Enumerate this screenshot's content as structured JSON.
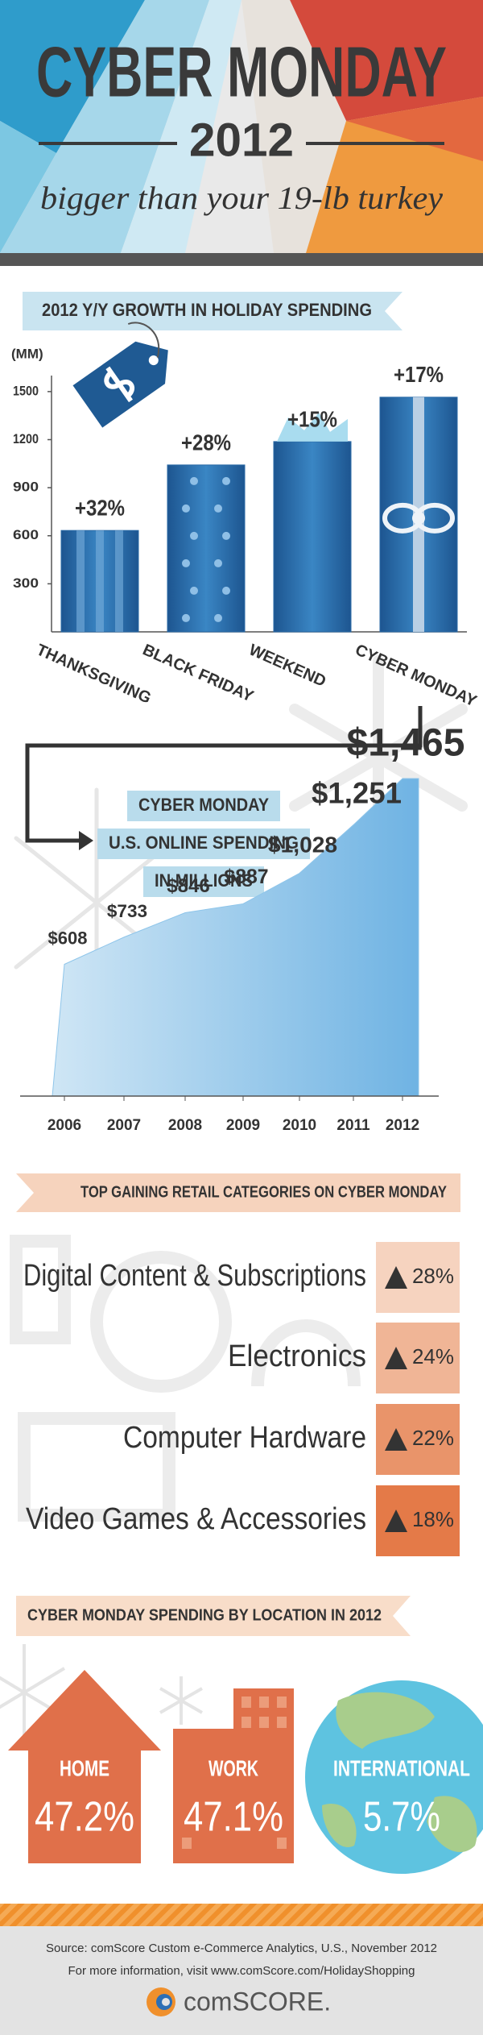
{
  "header": {
    "title": "CYBER MONDAY",
    "year": "2012",
    "tagline": "bigger than your 19-lb turkey"
  },
  "chart_data": [
    {
      "type": "bar",
      "title": "2012 Y/Y GROWTH IN HOLIDAY SPENDING",
      "y_label": "(MM)",
      "categories": [
        "THANKSGIVING",
        "BLACK FRIDAY",
        "WEEKEND",
        "CYBER MONDAY"
      ],
      "values": [
        633,
        1042,
        1188,
        1465
      ],
      "annotations": [
        "+32%",
        "+28%",
        "+15%",
        "+17%"
      ],
      "color": "#2a6aa6",
      "ylim": [
        0,
        1600
      ],
      "yticks": [
        300,
        600,
        900,
        1200,
        1500
      ]
    },
    {
      "type": "area",
      "title": [
        "CYBER MONDAY",
        "U.S. ONLINE SPENDING",
        "IN MILLIONS"
      ],
      "categories": [
        "2006",
        "2007",
        "2008",
        "2009",
        "2010",
        "2011",
        "2012"
      ],
      "values": [
        608,
        733,
        846,
        887,
        1028,
        1251,
        1465
      ],
      "value_labels": [
        "$608",
        "$733",
        "$846",
        "$887",
        "$1,028",
        "$1,251",
        "$1,465"
      ],
      "color": "#8ec5ea"
    }
  ],
  "top_categories": {
    "title": "TOP GAINING RETAIL CATEGORIES ON CYBER MONDAY",
    "items": [
      {
        "label": "Digital Content & Subscriptions",
        "change": "28%"
      },
      {
        "label": "Electronics",
        "change": "24%"
      },
      {
        "label": "Computer Hardware",
        "change": "22%"
      },
      {
        "label": "Video Games & Accessories",
        "change": "18%"
      }
    ]
  },
  "locations": {
    "title": "CYBER MONDAY SPENDING BY LOCATION IN 2012",
    "items": [
      {
        "label": "HOME",
        "share": "47.2%"
      },
      {
        "label": "WORK",
        "share": "47.1%"
      },
      {
        "label": "INTERNATIONAL",
        "share": "5.7%"
      }
    ]
  },
  "footer": {
    "source": "Source: comScore Custom e-Commerce Analytics, U.S., November 2012",
    "more_info": "For more information, visit www.comScore.com/HolidayShopping",
    "logo": "comSCORE."
  }
}
